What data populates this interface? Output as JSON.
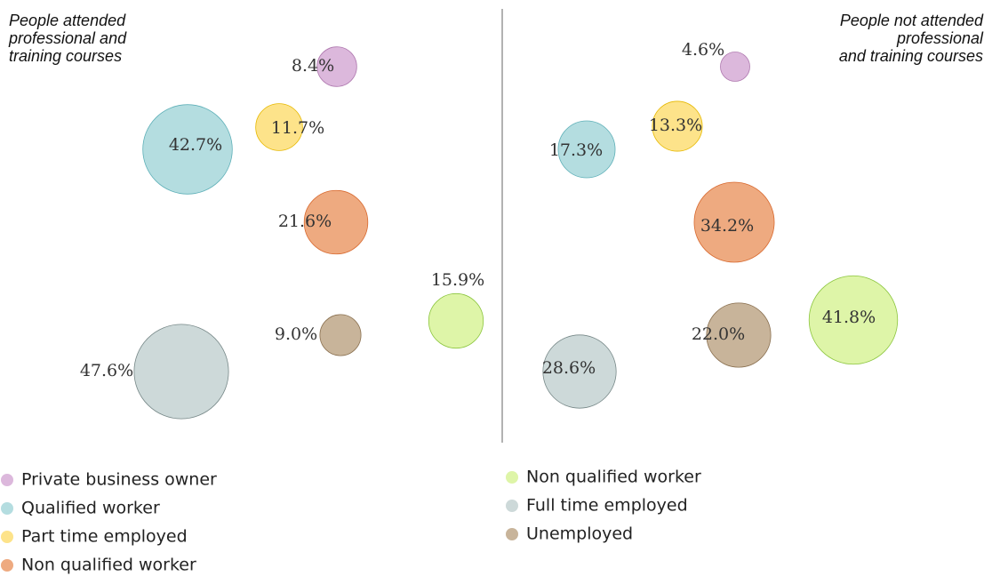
{
  "chart_data": {
    "type": "bubble",
    "panel_titles": [
      [
        "People attended",
        "professional and",
        "training courses"
      ],
      [
        "People not attended",
        "professional",
        "and training courses"
      ]
    ],
    "series": [
      {
        "name": "Private business owner",
        "color": "#dcb8dc",
        "values": [
          8.4,
          4.6
        ],
        "value_labels": [
          "8.4%",
          "4.6%"
        ]
      },
      {
        "name": "Qualified worker",
        "color": "#b4dde0",
        "values": [
          42.7,
          17.3
        ],
        "value_labels": [
          "42.7%",
          "17.3%"
        ]
      },
      {
        "name": "Part time employed",
        "color": "#fde38a",
        "values": [
          11.7,
          13.3
        ],
        "value_labels": [
          "11.7%",
          "13.3%"
        ]
      },
      {
        "name": "Non qualified worker",
        "color": "#eeaa80",
        "values": [
          21.6,
          34.2
        ],
        "value_labels": [
          "21.6%",
          "34.2%"
        ]
      },
      {
        "name": "Non qualified worker",
        "color": "#def5a8",
        "values": [
          15.9,
          41.8
        ],
        "value_labels": [
          "15.9%",
          "41.8%"
        ]
      },
      {
        "name": "Full time employed",
        "color": "#cdd9d9",
        "values": [
          47.6,
          28.6
        ],
        "value_labels": [
          "47.6%",
          "28.6%"
        ]
      },
      {
        "name": "Unemployed",
        "color": "#c8b49a",
        "values": [
          9.0,
          22.0
        ],
        "value_labels": [
          "9.0%",
          "22.0%"
        ]
      }
    ]
  }
}
